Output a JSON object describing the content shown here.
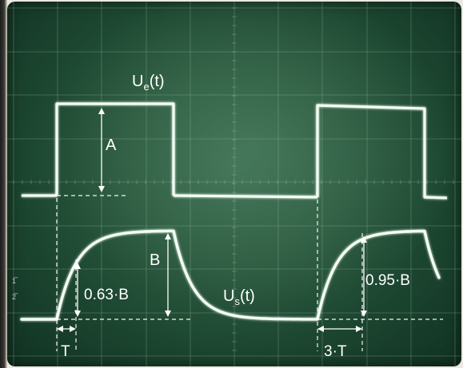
{
  "labels": {
    "input_signal": {
      "main": "U",
      "sub": "e",
      "tail": "(t)"
    },
    "output_signal": {
      "main": "U",
      "sub": "s",
      "tail": "(t)"
    },
    "amplitude_input": "A",
    "amplitude_output": "B",
    "level_63": "0.63·B",
    "level_95": "0.95·B",
    "time_constant": "T",
    "three_time_constants": "3·T",
    "scale_mark_top": "1̅",
    "scale_mark_bottom": "2̅"
  },
  "colors": {
    "screen": "#2c5a40",
    "grid": "#a8c8ae",
    "trace": "#f4fff4",
    "annotation": "#ffffff"
  },
  "notes": {
    "visual": "Oscilloscope screen showing a square-wave input and its first-order exponential step response"
  }
}
